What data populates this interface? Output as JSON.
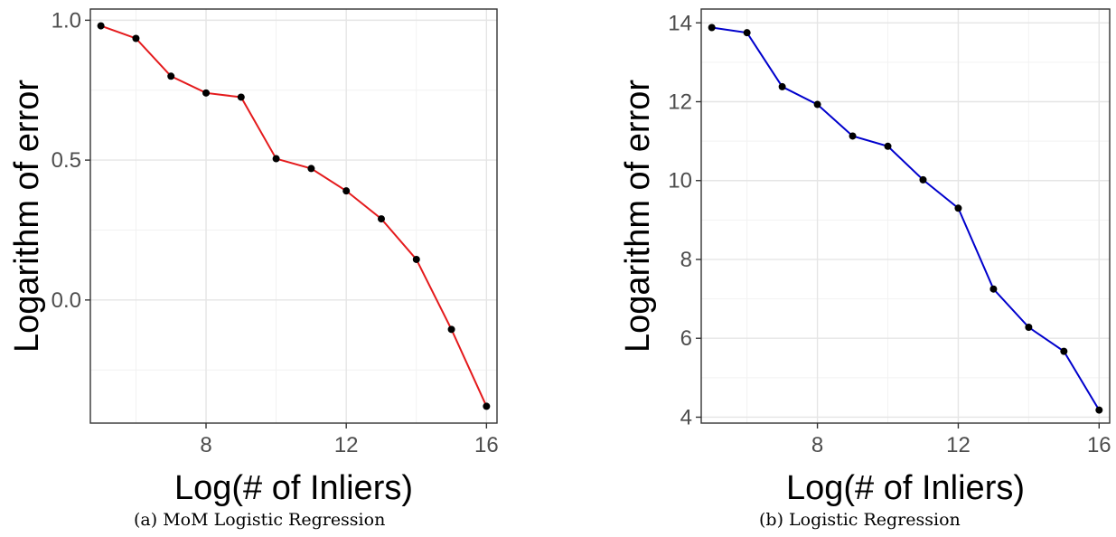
{
  "chart_data": [
    {
      "type": "line",
      "caption": "(a) MoM Logistic Regression",
      "xlabel": "Log(# of Inliers)",
      "ylabel": "Logarithm of error",
      "xlim": [
        4.7,
        16.3
      ],
      "ylim": [
        -0.44,
        1.04
      ],
      "xticks": [
        8,
        12,
        16
      ],
      "xtick_labels": [
        "8",
        "12",
        "16"
      ],
      "yticks": [
        0.0,
        0.5,
        1.0
      ],
      "ytick_labels": [
        "0.0",
        "0.5",
        "1.0"
      ],
      "line_color": "#e41a1c",
      "grid": true,
      "series": [
        {
          "x": [
            5,
            6,
            7,
            8,
            9,
            10,
            11,
            12,
            13,
            14,
            15,
            16
          ],
          "y": [
            0.98,
            0.935,
            0.8,
            0.74,
            0.725,
            0.505,
            0.47,
            0.39,
            0.29,
            0.145,
            -0.105,
            -0.38
          ]
        }
      ]
    },
    {
      "type": "line",
      "caption": "(b) Logistic Regression",
      "xlabel": "Log(# of Inliers)",
      "ylabel": "Logarithm of error",
      "xlim": [
        4.7,
        16.3
      ],
      "ylim": [
        3.85,
        14.35
      ],
      "xticks": [
        8,
        12,
        16
      ],
      "xtick_labels": [
        "8",
        "12",
        "16"
      ],
      "yticks": [
        4,
        6,
        8,
        10,
        12,
        14
      ],
      "ytick_labels": [
        "4",
        "6",
        "8",
        "10",
        "12",
        "14"
      ],
      "line_color": "#0000cc",
      "grid": true,
      "series": [
        {
          "x": [
            5,
            6,
            7,
            8,
            9,
            10,
            11,
            12,
            13,
            14,
            15,
            16
          ],
          "y": [
            13.88,
            13.75,
            12.38,
            11.93,
            11.13,
            10.87,
            10.02,
            9.3,
            7.25,
            6.28,
            5.67,
            4.18
          ]
        }
      ]
    }
  ]
}
